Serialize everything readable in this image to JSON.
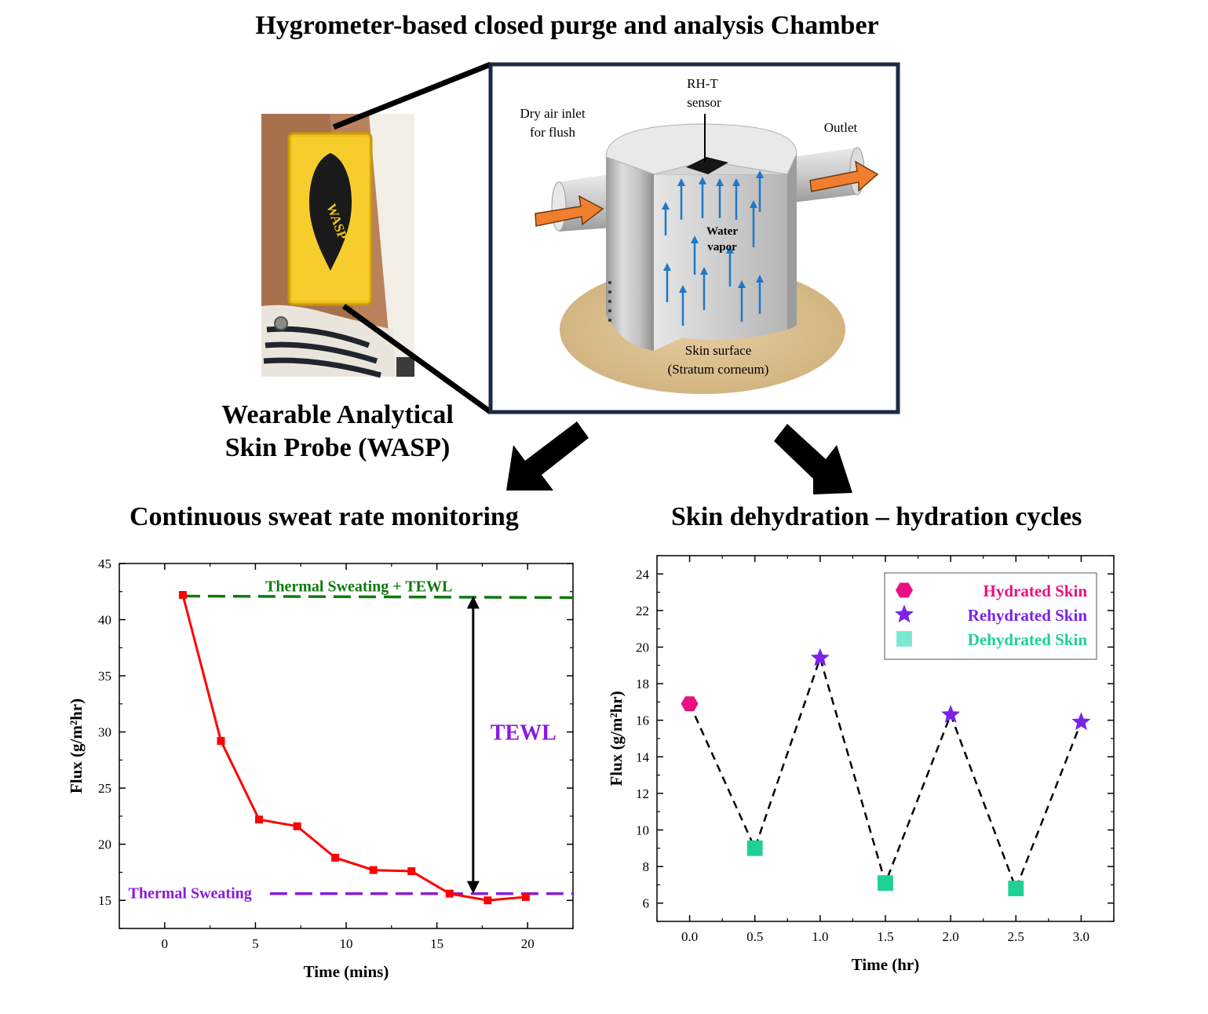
{
  "header": {
    "main_title": "Hygrometer-based closed purge and analysis Chamber",
    "wasp_title_line1": "Wearable Analytical",
    "wasp_title_line2": "Skin Probe (WASP)",
    "left_heading": "Continuous sweat rate monitoring",
    "right_heading": "Skin dehydration – hydration cycles"
  },
  "photo": {
    "device_label": "WASP",
    "colors": {
      "device": "#f2c21b",
      "teardrop": "#1a1a1a",
      "skin": "#c08a66"
    }
  },
  "chamber": {
    "sensor_label_line1": "RH-T",
    "sensor_label_line2": "sensor",
    "inlet_label_line1": "Dry air inlet",
    "inlet_label_line2": "for flush",
    "outlet_label": "Outlet",
    "vapor_label_line1": "Water",
    "vapor_label_line2": "vapor",
    "surface_label_line1": "Skin surface",
    "surface_label_line2": "(Stratum corneum)",
    "colors": {
      "frame": "#1b2a44",
      "flow_arrow": "#ef7f2f",
      "vapor_arrow": "#1f78c8",
      "skin_disc": "#d8bc8e"
    }
  },
  "chart_data": [
    {
      "type": "line",
      "title": "",
      "xlabel": "Time (mins)",
      "ylabel": "Flux (g/m²hr)",
      "xlim": [
        -2.5,
        22.5
      ],
      "ylim": [
        12.5,
        45
      ],
      "xticks": [
        0,
        5,
        10,
        15,
        20
      ],
      "yticks": [
        15,
        20,
        25,
        30,
        35,
        40,
        45
      ],
      "grid": false,
      "series": [
        {
          "name": "",
          "color": "#ff0000",
          "x": [
            1,
            3.1,
            5.2,
            7.3,
            9.4,
            11.5,
            13.6,
            15.7,
            17.8,
            19.9
          ],
          "y": [
            42.2,
            29.2,
            22.2,
            21.6,
            18.8,
            17.7,
            17.6,
            15.6,
            15.0,
            15.3
          ]
        }
      ],
      "reference_lines": [
        {
          "label": "Thermal Sweating + TEWL",
          "y": 42.1,
          "color": "#0f7a0f"
        },
        {
          "label": "Thermal Sweating",
          "y": 15.6,
          "color": "#8a1adf"
        }
      ],
      "annotation": {
        "label": "TEWL",
        "x": 17.0,
        "y_from": 15.6,
        "y_to": 42.1,
        "color": "#8a1adf"
      }
    },
    {
      "type": "scatter",
      "title": "",
      "xlabel": "Time (hr)",
      "ylabel": "Flux (g/m²hr)",
      "xlim": [
        -0.25,
        3.25
      ],
      "ylim": [
        5,
        25
      ],
      "xticks": [
        "0.0",
        "0.5",
        "1.0",
        "1.5",
        "2.0",
        "2.5",
        "3.0"
      ],
      "yticks": [
        6,
        8,
        10,
        12,
        14,
        16,
        18,
        20,
        22,
        24
      ],
      "grid": false,
      "legend": "top-right",
      "connector": "dashed black line through all points in time order",
      "series": [
        {
          "name": "Hydrated Skin",
          "marker": "hexagon",
          "color": "#e8117f",
          "points": [
            [
              0.0,
              16.9
            ]
          ]
        },
        {
          "name": "Rehydrated Skin",
          "marker": "star",
          "color": "#7b22e8",
          "points": [
            [
              1.0,
              19.4
            ],
            [
              2.0,
              16.3
            ],
            [
              3.0,
              15.9
            ]
          ]
        },
        {
          "name": "Dehydrated Skin",
          "marker": "square",
          "color": "#1fd192",
          "legend_color": "#7be8cf",
          "points": [
            [
              0.5,
              9.0
            ],
            [
              1.5,
              7.1
            ],
            [
              2.5,
              6.8
            ]
          ]
        }
      ]
    }
  ]
}
